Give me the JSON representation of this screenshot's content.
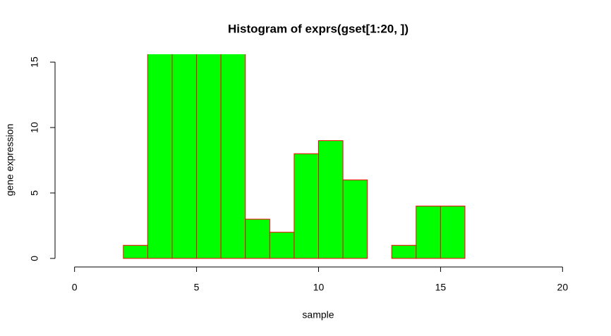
{
  "chart_data": {
    "type": "histogram",
    "title": "Histogram of exprs(gset[1:20, ])",
    "x_label": "sample",
    "y_label": "gene expression",
    "bins": [
      2,
      3,
      4,
      5,
      6,
      7,
      8,
      9,
      10,
      11,
      12,
      13,
      14,
      15,
      16
    ],
    "values": [
      1,
      16,
      16,
      16,
      16,
      3,
      2,
      8,
      9,
      6,
      0,
      1,
      4,
      4
    ],
    "color": "#00ff00",
    "edge_color": "#ff0000",
    "xlim": [
      -0.8,
      20.8
    ],
    "ylim": [
      -0.6,
      15.6
    ],
    "xticks": [
      0,
      5,
      10,
      15,
      20
    ],
    "yticks": [
      0,
      5,
      10,
      15
    ]
  }
}
